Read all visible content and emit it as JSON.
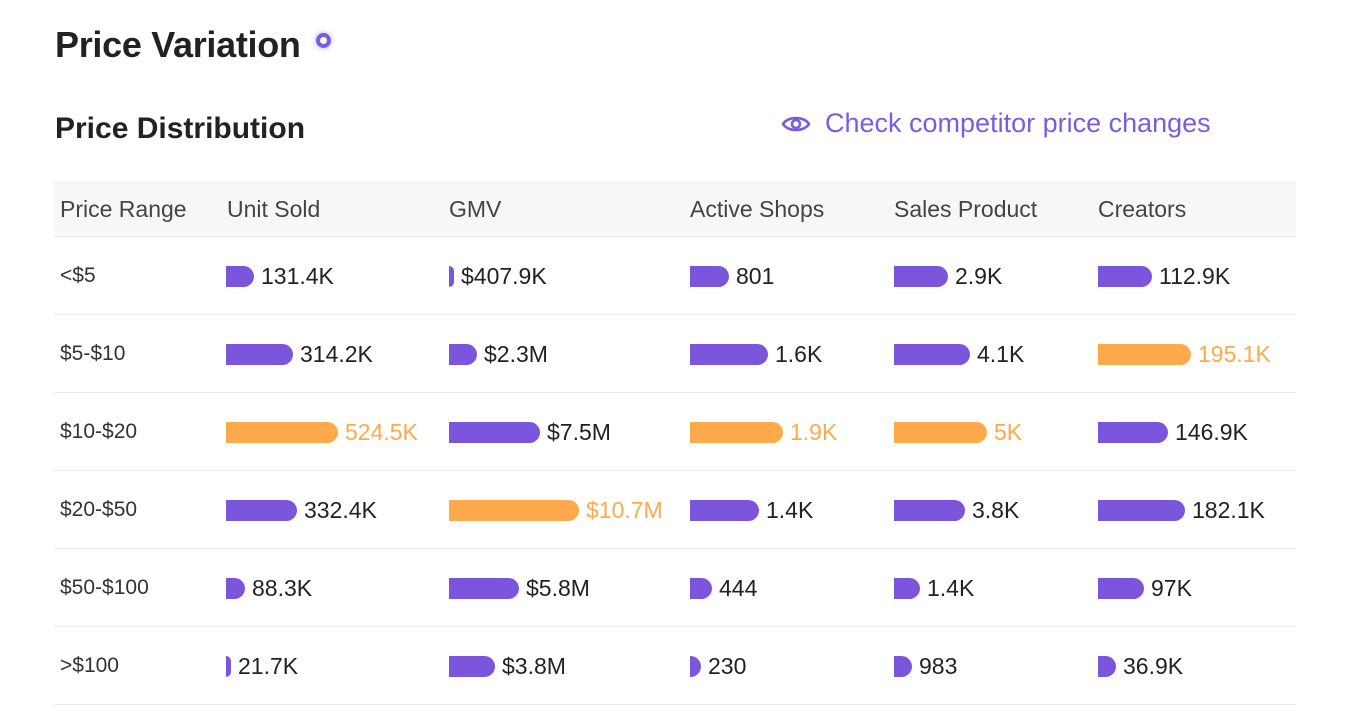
{
  "header": {
    "title": "Price Variation",
    "subtitle": "Price Distribution",
    "check_link": "Check competitor price changes"
  },
  "colors": {
    "bar": "#7b55dc",
    "highlight": "#ffa94d",
    "accent": "#7b5ce0"
  },
  "icons": {
    "title_indicator": "pulse-dot-icon",
    "check_link": "eye-icon"
  },
  "table": {
    "columns": [
      "Price Range",
      "Unit Sold",
      "GMV",
      "Active Shops",
      "Sales Product",
      "Creators"
    ],
    "rows": [
      {
        "range": "<$5",
        "cells": [
          {
            "label": "131.4K",
            "value": 131400,
            "max": false
          },
          {
            "label": "$407.9K",
            "value": 407900,
            "max": false
          },
          {
            "label": "801",
            "value": 801,
            "max": false
          },
          {
            "label": "2.9K",
            "value": 2900,
            "max": false
          },
          {
            "label": "112.9K",
            "value": 112900,
            "max": false
          }
        ]
      },
      {
        "range": "$5-$10",
        "cells": [
          {
            "label": "314.2K",
            "value": 314200,
            "max": false
          },
          {
            "label": "$2.3M",
            "value": 2300000,
            "max": false
          },
          {
            "label": "1.6K",
            "value": 1600,
            "max": false
          },
          {
            "label": "4.1K",
            "value": 4100,
            "max": false
          },
          {
            "label": "195.1K",
            "value": 195100,
            "max": true
          }
        ]
      },
      {
        "range": "$10-$20",
        "cells": [
          {
            "label": "524.5K",
            "value": 524500,
            "max": true
          },
          {
            "label": "$7.5M",
            "value": 7500000,
            "max": false
          },
          {
            "label": "1.9K",
            "value": 1900,
            "max": true
          },
          {
            "label": "5K",
            "value": 5000,
            "max": true
          },
          {
            "label": "146.9K",
            "value": 146900,
            "max": false
          }
        ]
      },
      {
        "range": "$20-$50",
        "cells": [
          {
            "label": "332.4K",
            "value": 332400,
            "max": false
          },
          {
            "label": "$10.7M",
            "value": 10700000,
            "max": true
          },
          {
            "label": "1.4K",
            "value": 1400,
            "max": false
          },
          {
            "label": "3.8K",
            "value": 3800,
            "max": false
          },
          {
            "label": "182.1K",
            "value": 182100,
            "max": false
          }
        ]
      },
      {
        "range": "$50-$100",
        "cells": [
          {
            "label": "88.3K",
            "value": 88300,
            "max": false
          },
          {
            "label": "$5.8M",
            "value": 5800000,
            "max": false
          },
          {
            "label": "444",
            "value": 444,
            "max": false
          },
          {
            "label": "1.4K",
            "value": 1400,
            "max": false
          },
          {
            "label": "97K",
            "value": 97000,
            "max": false
          }
        ]
      },
      {
        "range": ">$100",
        "cells": [
          {
            "label": "21.7K",
            "value": 21700,
            "max": false
          },
          {
            "label": "$3.8M",
            "value": 3800000,
            "max": false
          },
          {
            "label": "230",
            "value": 230,
            "max": false
          },
          {
            "label": "983",
            "value": 983,
            "max": false
          },
          {
            "label": "36.9K",
            "value": 36900,
            "max": false
          }
        ]
      }
    ]
  }
}
